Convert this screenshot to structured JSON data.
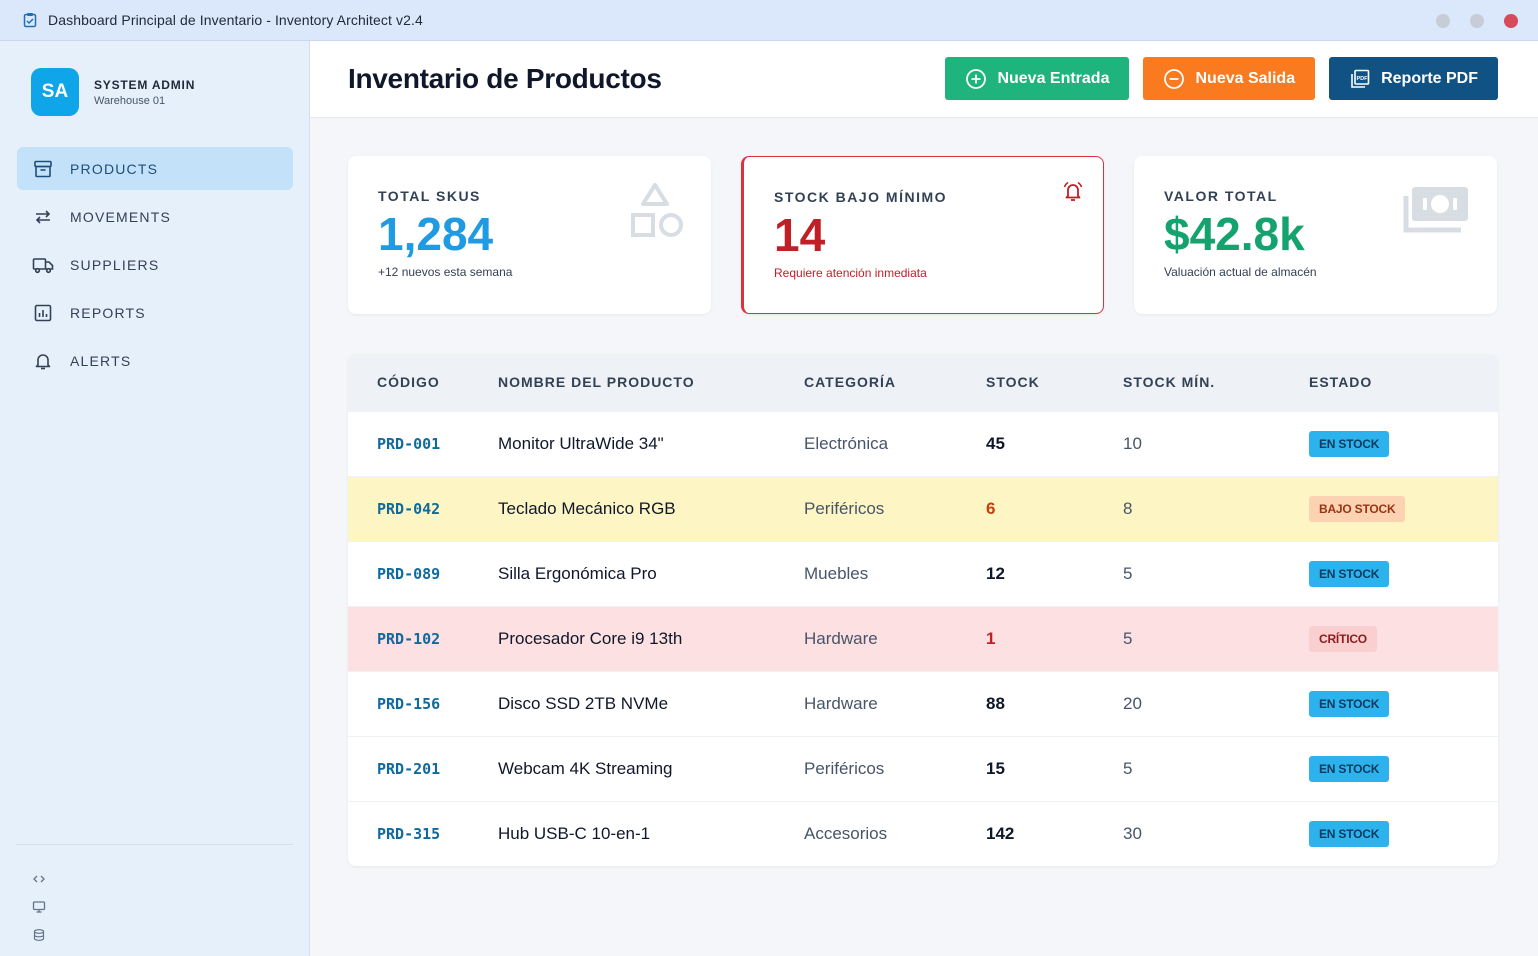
{
  "window": {
    "title": "Dashboard Principal de Inventario - Inventory Architect v2.4"
  },
  "sidebar": {
    "avatar_initials": "SA",
    "user_name": "SYSTEM ADMIN",
    "user_sub": "Warehouse 01",
    "items": [
      {
        "label": "PRODUCTS",
        "icon": "archive-icon",
        "active": true
      },
      {
        "label": "MOVEMENTS",
        "icon": "swap-arrows-icon",
        "active": false
      },
      {
        "label": "SUPPLIERS",
        "icon": "truck-icon",
        "active": false
      },
      {
        "label": "REPORTS",
        "icon": "chart-icon",
        "active": false
      },
      {
        "label": "ALERTS",
        "icon": "bell-icon",
        "active": false
      }
    ],
    "footer_icons": [
      "code-icon",
      "monitor-icon",
      "database-icon"
    ]
  },
  "header": {
    "title": "Inventario de Productos",
    "buttons": {
      "new_entry": "Nueva Entrada",
      "new_exit": "Nueva Salida",
      "pdf_report": "Reporte PDF"
    }
  },
  "cards": {
    "skus": {
      "label": "TOTAL SKUS",
      "value": "1,284",
      "sub": "+12 nuevos esta semana",
      "icon": "shapes-icon"
    },
    "low": {
      "label": "STOCK BAJO MÍNIMO",
      "value": "14",
      "sub": "Requiere atención inmediata",
      "icon": "alarm-bell-icon"
    },
    "value": {
      "label": "VALOR TOTAL",
      "value": "$42.8k",
      "sub": "Valuación actual de almacén",
      "icon": "cash-icon"
    }
  },
  "table": {
    "headers": {
      "code": "CÓDIGO",
      "name": "NOMBRE DEL PRODUCTO",
      "category": "CATEGORÍA",
      "stock": "STOCK",
      "min": "STOCK MÍN.",
      "status": "ESTADO"
    },
    "rows": [
      {
        "code": "PRD-001",
        "name": "Monitor UltraWide 34\"",
        "category": "Electrónica",
        "stock": "45",
        "min": "10",
        "status": "EN STOCK"
      },
      {
        "code": "PRD-042",
        "name": "Teclado Mecánico RGB",
        "category": "Periféricos",
        "stock": "6",
        "min": "8",
        "status": "BAJO STOCK"
      },
      {
        "code": "PRD-089",
        "name": "Silla Ergonómica Pro",
        "category": "Muebles",
        "stock": "12",
        "min": "5",
        "status": "EN STOCK"
      },
      {
        "code": "PRD-102",
        "name": "Procesador Core i9 13th",
        "category": "Hardware",
        "stock": "1",
        "min": "5",
        "status": "CRÍTICO"
      },
      {
        "code": "PRD-156",
        "name": "Disco SSD 2TB NVMe",
        "category": "Hardware",
        "stock": "88",
        "min": "20",
        "status": "EN STOCK"
      },
      {
        "code": "PRD-201",
        "name": "Webcam 4K Streaming",
        "category": "Periféricos",
        "stock": "15",
        "min": "5",
        "status": "EN STOCK"
      },
      {
        "code": "PRD-315",
        "name": "Hub USB-C 10-en-1",
        "category": "Accesorios",
        "stock": "142",
        "min": "30",
        "status": "EN STOCK"
      }
    ]
  },
  "colors": {
    "accent": "#0ea5e9",
    "success": "#1fb47d",
    "warning": "#f97a1f",
    "danger": "#c11f26",
    "primary_dark": "#0f5283"
  }
}
